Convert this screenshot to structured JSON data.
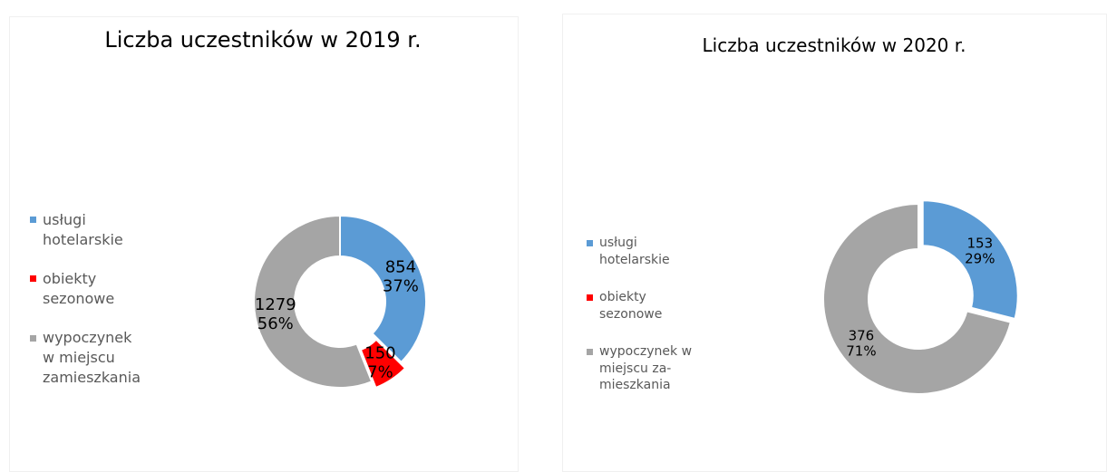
{
  "chart_data": [
    {
      "type": "donut",
      "title": "Liczba uczestników w 2019 r.",
      "categories": [
        "usługi hotelarskie",
        "obiekty sezonowe",
        "wypoczynek w miejscu zamieszkania"
      ],
      "values": [
        854,
        150,
        1279
      ],
      "percent_labels": [
        "37%",
        "7%",
        "56%"
      ],
      "colors": [
        "#5b9bd5",
        "#ff0000",
        "#a5a5a5"
      ],
      "legend": "left"
    },
    {
      "type": "donut",
      "title": "Liczba uczestników w 2020 r.",
      "categories": [
        "usługi hotelarskie",
        "obiekty sezonowe",
        "wypoczynek w miejscu za-mieszkania"
      ],
      "values": [
        153,
        0,
        376
      ],
      "percent_labels": [
        "29%",
        null,
        "71%"
      ],
      "colors": [
        "#5b9bd5",
        "#ff0000",
        "#a5a5a5"
      ],
      "legend": "left"
    }
  ]
}
